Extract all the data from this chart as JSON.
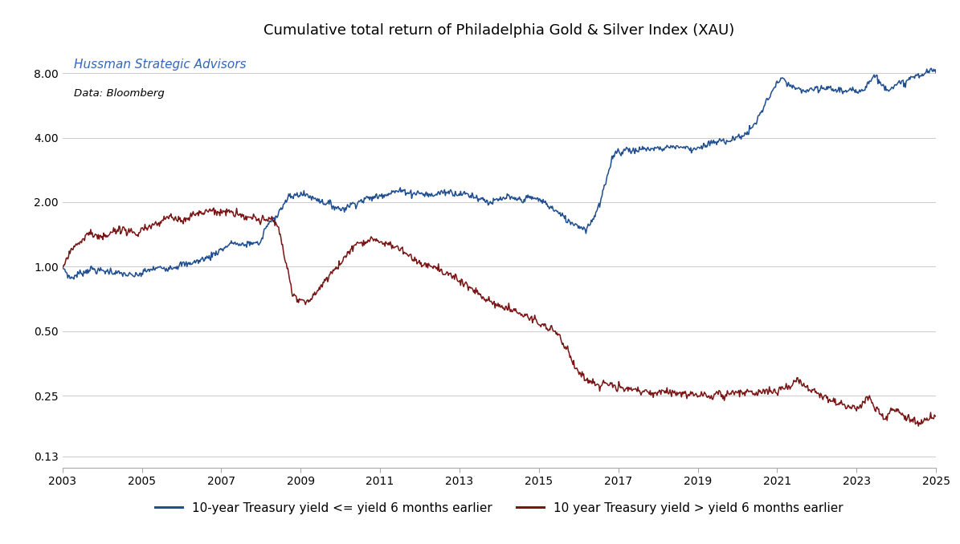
{
  "title": "Cumulative total return of Philadelphia Gold & Silver Index (XAU)",
  "subtitle1": "Hussman Strategic Advisors",
  "subtitle2": "Data: Bloomberg",
  "blue_label": "10-year Treasury yield <= yield 6 months earlier",
  "red_label": "10 year Treasury yield > yield 6 months earlier",
  "blue_color": "#1F4E91",
  "red_color": "#7B1414",
  "background_color": "#FFFFFF",
  "title_fontsize": 13,
  "legend_fontsize": 11,
  "yticks": [
    0.13,
    0.25,
    0.5,
    1.0,
    2.0,
    4.0,
    8.0
  ],
  "ytick_labels": [
    "0.13",
    "0.25",
    "0.50",
    "1.00",
    "2.00",
    "4.00",
    "8.00"
  ],
  "xticks": [
    2003,
    2005,
    2007,
    2009,
    2011,
    2013,
    2015,
    2017,
    2019,
    2021,
    2023,
    2025
  ],
  "xmin": 2003,
  "xmax": 2025
}
